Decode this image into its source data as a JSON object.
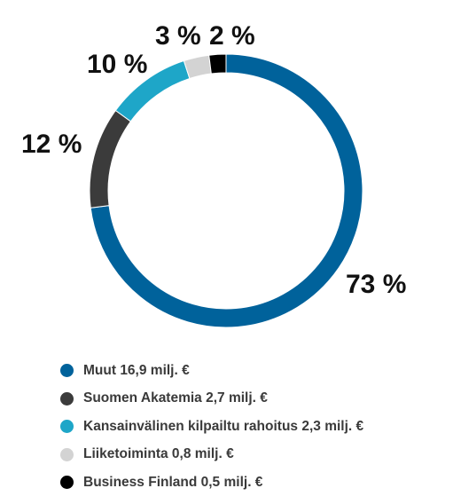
{
  "chart_data": {
    "type": "pie",
    "variant": "donut",
    "title": "",
    "slices": [
      {
        "label": "Muut 16,9 milj. €",
        "value": 73,
        "value_label": "73 %",
        "color": "#00629b"
      },
      {
        "label": "Suomen Akatemia 2,7 milj. €",
        "value": 12,
        "value_label": "12 %",
        "color": "#3b3b3b"
      },
      {
        "label": "Kansainvälinen kilpailtu rahoitus 2,3 milj. €",
        "value": 10,
        "value_label": "10 %",
        "color": "#1ea6c8"
      },
      {
        "label": "Liiketoiminta 0,8 milj. €",
        "value": 3,
        "value_label": "3 %",
        "color": "#d3d3d3"
      },
      {
        "label": "Business Finland 0,5 milj. €",
        "value": 2,
        "value_label": "2 %",
        "color": "#000000"
      }
    ],
    "legend_position": "bottom-left"
  }
}
